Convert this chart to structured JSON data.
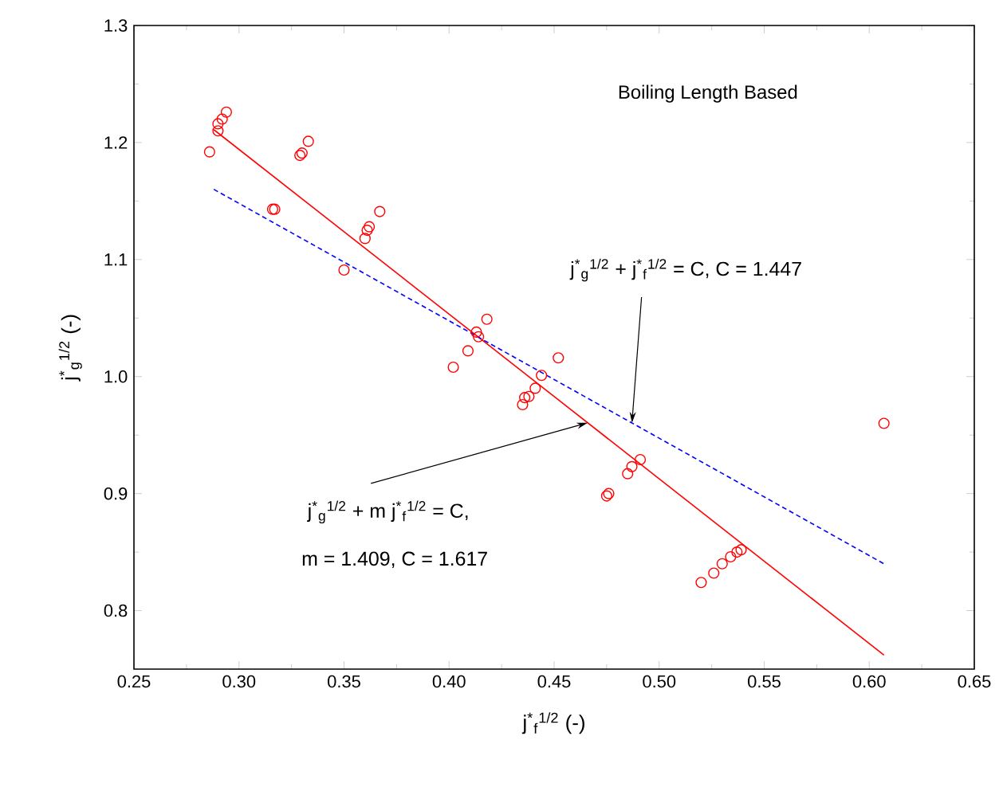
{
  "chart_data": {
    "type": "scatter",
    "xlabel": "j$^{*}$$_{f}$$^{1/2}$    (-)",
    "ylabel": "j$^{*}$$_{g}$$^{1/2}$    (-)",
    "xlim": [
      0.25,
      0.65
    ],
    "ylim": [
      0.75,
      1.3
    ],
    "xticks": [
      0.25,
      {
        "value": 0.3,
        "label": "0.30"
      },
      0.35,
      {
        "value": 0.4,
        "label": "0.40"
      },
      0.45,
      {
        "value": 0.5,
        "label": "0.50"
      },
      0.55,
      {
        "value": 0.6,
        "label": "0.60"
      },
      0.65
    ],
    "yticks": [
      0.8,
      0.9,
      {
        "value": 1.0,
        "label": "1.0"
      },
      1.1,
      1.2,
      1.3
    ],
    "series": [
      {
        "color": "#ff0000",
        "marker": "circle",
        "x": [
          0.286,
          0.29,
          0.29,
          0.292,
          0.294,
          0.316,
          0.317,
          0.329,
          0.33,
          0.333,
          0.35,
          0.36,
          0.361,
          0.362,
          0.367,
          0.402,
          0.409,
          0.413,
          0.414,
          0.418,
          0.435,
          0.436,
          0.438,
          0.441,
          0.444,
          0.452,
          0.475,
          0.476,
          0.485,
          0.487,
          0.491,
          0.52,
          0.526,
          0.53,
          0.534,
          0.537,
          0.539,
          0.607
        ],
        "values": [
          1.192,
          1.21,
          1.216,
          1.22,
          1.226,
          1.143,
          1.143,
          1.189,
          1.191,
          1.201,
          1.091,
          1.118,
          1.125,
          1.128,
          1.141,
          1.008,
          1.022,
          1.038,
          1.034,
          1.049,
          0.976,
          0.982,
          0.983,
          0.99,
          1.001,
          1.016,
          0.898,
          0.9,
          0.917,
          0.923,
          0.929,
          0.824,
          0.832,
          0.84,
          0.846,
          0.85,
          0.852,
          0.96
        ]
      },
      {
        "type": "line",
        "color": "#ff0000",
        "line_style": "solid",
        "x": [
          0.288,
          0.607
        ],
        "values": [
          1.211,
          0.762
        ]
      },
      {
        "type": "line",
        "color": "#0000ff",
        "line_style": "dashed",
        "x": [
          0.288,
          0.607
        ],
        "values": [
          1.16,
          0.84
        ]
      }
    ],
    "annotations": [
      "Boiling Length Based",
      "j$^{*}$$_{g}$$^{1/2}$ + j$^{*}$$_{f}$$^{1/2}$ = C, C = 1.447",
      "j$^{*}$$_{g}$$^{1/2}$ + m j$^{*}$$_{f}$$^{1/2}$ = C,",
      "m = 1.409, C = 1.617"
    ]
  }
}
